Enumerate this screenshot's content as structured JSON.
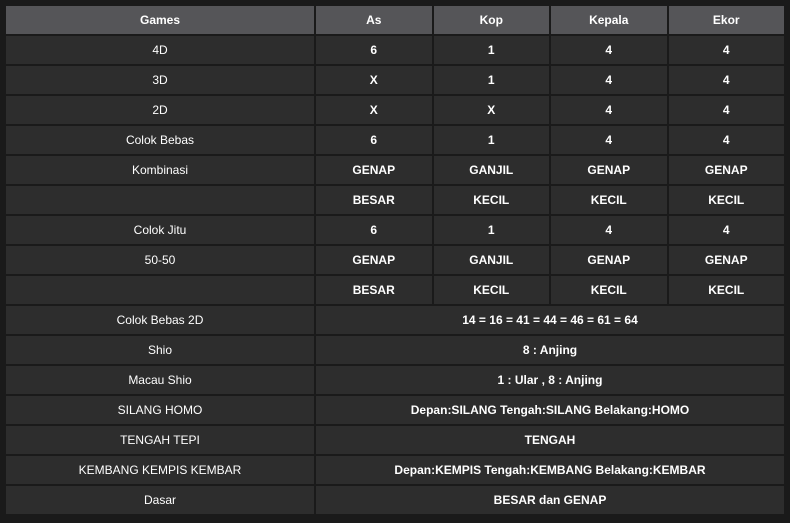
{
  "colors": {
    "page_bg": "#1a1a1a",
    "header_bg": "#555558",
    "cell_bg": "#2d2d2d",
    "text": "#ffffff"
  },
  "headers": [
    "Games",
    "As",
    "Kop",
    "Kepala",
    "Ekor"
  ],
  "rows": [
    {
      "label": "4D",
      "cells": [
        "6",
        "1",
        "4",
        "4"
      ]
    },
    {
      "label": "3D",
      "cells": [
        "X",
        "1",
        "4",
        "4"
      ]
    },
    {
      "label": "2D",
      "cells": [
        "X",
        "X",
        "4",
        "4"
      ]
    },
    {
      "label": "Colok Bebas",
      "cells": [
        "6",
        "1",
        "4",
        "4"
      ]
    },
    {
      "label": "Kombinasi",
      "cells": [
        "GENAP",
        "GANJIL",
        "GENAP",
        "GENAP"
      ]
    },
    {
      "label": "",
      "cells": [
        "BESAR",
        "KECIL",
        "KECIL",
        "KECIL"
      ]
    },
    {
      "label": "Colok Jitu",
      "cells": [
        "6",
        "1",
        "4",
        "4"
      ]
    },
    {
      "label": "50-50",
      "cells": [
        "GENAP",
        "GANJIL",
        "GENAP",
        "GENAP"
      ]
    },
    {
      "label": "",
      "cells": [
        "BESAR",
        "KECIL",
        "KECIL",
        "KECIL"
      ]
    }
  ],
  "spanned_rows": [
    {
      "label": "Colok Bebas 2D",
      "value": "14 = 16 = 41 = 44 = 46 = 61 = 64"
    },
    {
      "label": "Shio",
      "value": "8 : Anjing"
    },
    {
      "label": "Macau Shio",
      "value": "1 : Ular , 8 : Anjing"
    },
    {
      "label": "SILANG HOMO",
      "value": "Depan:SILANG Tengah:SILANG Belakang:HOMO"
    },
    {
      "label": "TENGAH TEPI",
      "value": "TENGAH"
    },
    {
      "label": "KEMBANG KEMPIS KEMBAR",
      "value": "Depan:KEMPIS Tengah:KEMBANG Belakang:KEMBAR"
    },
    {
      "label": "Dasar",
      "value": "BESAR dan GENAP"
    }
  ]
}
